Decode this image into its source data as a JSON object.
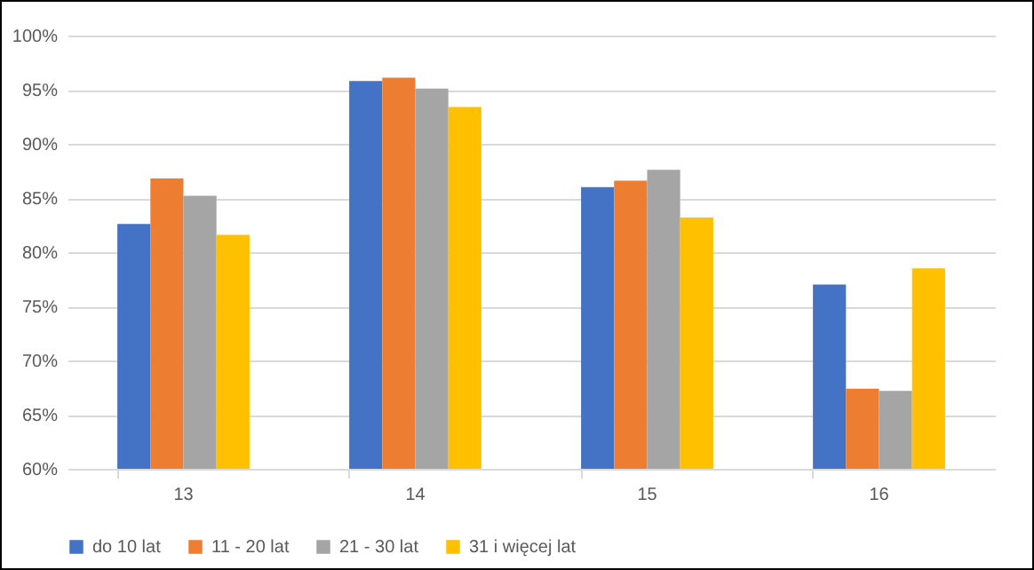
{
  "chart_data": {
    "type": "bar",
    "categories": [
      "13",
      "14",
      "15",
      "16"
    ],
    "series": [
      {
        "name": "do 10 lat",
        "color": "#4472c4",
        "values": [
          82.6,
          95.8,
          86.0,
          77.0
        ]
      },
      {
        "name": "11 - 20 lat",
        "color": "#ed7d31",
        "values": [
          86.8,
          96.1,
          86.6,
          67.4
        ]
      },
      {
        "name": "21 - 30 lat",
        "color": "#a5a5a5",
        "values": [
          85.2,
          95.1,
          87.6,
          67.2
        ]
      },
      {
        "name": "31 i więcej lat",
        "color": "#ffc000",
        "values": [
          81.6,
          93.4,
          83.2,
          78.5
        ]
      }
    ],
    "ylim": [
      60,
      100
    ],
    "yticks": [
      {
        "value": 60,
        "label": "60%"
      },
      {
        "value": 65,
        "label": "65%"
      },
      {
        "value": 70,
        "label": "70%"
      },
      {
        "value": 75,
        "label": "75%"
      },
      {
        "value": 80,
        "label": "80%"
      },
      {
        "value": 85,
        "label": "85%"
      },
      {
        "value": 90,
        "label": "90%"
      },
      {
        "value": 95,
        "label": "95%"
      },
      {
        "value": 100,
        "label": "100%"
      }
    ],
    "grid": "y",
    "legend": "bottom"
  }
}
